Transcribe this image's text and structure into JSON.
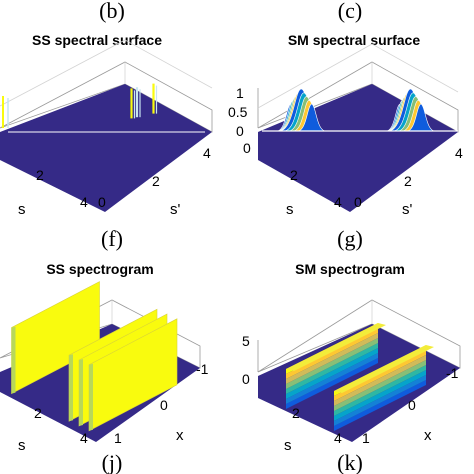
{
  "labels": {
    "top_left": "(b)",
    "top_right": "(c)",
    "mid_left": "(f)",
    "mid_right": "(g)",
    "bottom_left": "(j)",
    "bottom_right": "(k)"
  },
  "colors": {
    "floor": "#352a87",
    "yellow": "#f9fb0e",
    "light_blue": "#c8e6f0",
    "parula": [
      "#352a87",
      "#0f5cdd",
      "#1481d6",
      "#06a4ca",
      "#2eb7a4",
      "#87bf77",
      "#d1bb59",
      "#fec832",
      "#f9fb0e"
    ]
  },
  "chart_data": [
    {
      "type": "surface",
      "title": "SS spectral surface",
      "xlabel": "s",
      "ylabel": "s'",
      "x_ticks": [
        "2",
        "4"
      ],
      "y_ticks": [
        "0",
        "2",
        "4"
      ],
      "z_ticks": [],
      "xlim": [
        0,
        4
      ],
      "ylim": [
        0,
        4
      ],
      "spikes_at_s_prime": [
        2.6,
        2.8,
        3.4
      ]
    },
    {
      "type": "surface",
      "title": "SM spectral surface",
      "xlabel": "s",
      "ylabel": "s'",
      "x_ticks": [
        "0",
        "2",
        "4"
      ],
      "y_ticks": [
        "0",
        "2",
        "4"
      ],
      "z_ticks": [
        "1",
        "0.5",
        "0"
      ],
      "xlim": [
        0,
        4
      ],
      "ylim": [
        0,
        4
      ],
      "zlim": [
        0,
        1
      ],
      "peaks": [
        {
          "s_prime": 0.7,
          "z": 1.0
        },
        {
          "s_prime": 3.0,
          "z": 1.0
        }
      ]
    },
    {
      "type": "surface",
      "title": "SS spectrogram",
      "xlabel": "s",
      "ylabel": "x",
      "x_ticks": [
        "2",
        "4"
      ],
      "y_ticks": [
        "1",
        "0",
        "-1"
      ],
      "z_ticks": [],
      "xlim": [
        0,
        4
      ],
      "ylim": [
        -1,
        1
      ],
      "ridges_at_s": [
        0.3,
        2.6,
        3.0,
        3.4
      ]
    },
    {
      "type": "surface",
      "title": "SM spectrogram",
      "xlabel": "s",
      "ylabel": "x",
      "x_ticks": [
        "2",
        "4"
      ],
      "y_ticks": [
        "1",
        "0",
        "-1"
      ],
      "z_ticks": [
        "5",
        "0"
      ],
      "xlim": [
        0,
        4
      ],
      "ylim": [
        -1,
        1
      ],
      "zlim": [
        0,
        5
      ],
      "ridges": [
        {
          "s": 1.0,
          "z": 5
        },
        {
          "s": 3.0,
          "z": 5
        }
      ]
    }
  ]
}
